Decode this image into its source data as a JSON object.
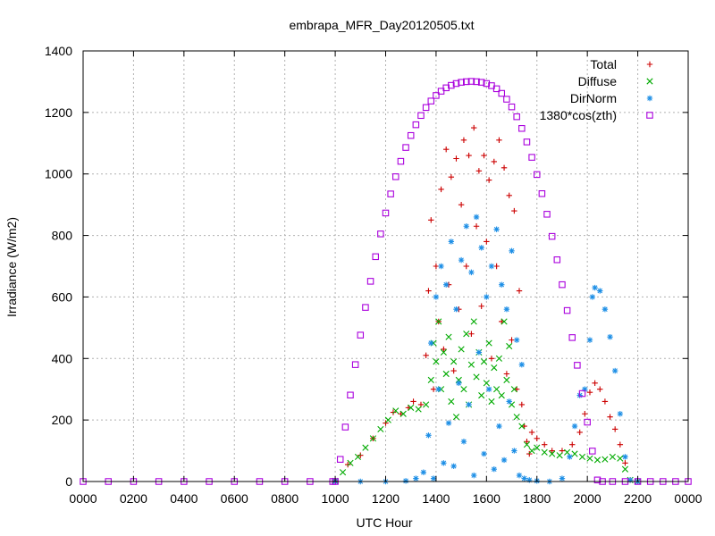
{
  "chart_data": {
    "type": "scatter",
    "title": "embrapa_MFR_Day20120505.txt",
    "xlabel": "UTC Hour",
    "ylabel": "Irradiance (W/m2)",
    "xlim": [
      0,
      24
    ],
    "ylim": [
      0,
      1400
    ],
    "grid": true,
    "legend_position": "top-right",
    "x_ticks": [
      {
        "v": 0,
        "label": "0000"
      },
      {
        "v": 2,
        "label": "0200"
      },
      {
        "v": 4,
        "label": "0400"
      },
      {
        "v": 6,
        "label": "0600"
      },
      {
        "v": 8,
        "label": "0800"
      },
      {
        "v": 10,
        "label": "1000"
      },
      {
        "v": 12,
        "label": "1200"
      },
      {
        "v": 14,
        "label": "1400"
      },
      {
        "v": 16,
        "label": "1600"
      },
      {
        "v": 18,
        "label": "1800"
      },
      {
        "v": 20,
        "label": "2000"
      },
      {
        "v": 22,
        "label": "2200"
      },
      {
        "v": 24,
        "label": "0000"
      }
    ],
    "y_ticks": [
      {
        "v": 0,
        "label": "0"
      },
      {
        "v": 200,
        "label": "200"
      },
      {
        "v": 400,
        "label": "400"
      },
      {
        "v": 600,
        "label": "600"
      },
      {
        "v": 800,
        "label": "800"
      },
      {
        "v": 1000,
        "label": "1000"
      },
      {
        "v": 1200,
        "label": "1200"
      },
      {
        "v": 1400,
        "label": "1400"
      }
    ],
    "series": [
      {
        "name": "Total",
        "color": "#cc0000",
        "marker": "plus",
        "points": [
          [
            10.0,
            2
          ],
          [
            10.5,
            55
          ],
          [
            11.0,
            85
          ],
          [
            11.5,
            140
          ],
          [
            12.0,
            190
          ],
          [
            12.3,
            225
          ],
          [
            12.6,
            220
          ],
          [
            12.9,
            240
          ],
          [
            13.1,
            260
          ],
          [
            13.4,
            250
          ],
          [
            13.6,
            410
          ],
          [
            13.7,
            620
          ],
          [
            13.8,
            850
          ],
          [
            13.9,
            300
          ],
          [
            14.0,
            700
          ],
          [
            14.1,
            520
          ],
          [
            14.2,
            950
          ],
          [
            14.3,
            430
          ],
          [
            14.4,
            1080
          ],
          [
            14.5,
            640
          ],
          [
            14.6,
            990
          ],
          [
            14.7,
            360
          ],
          [
            14.8,
            1050
          ],
          [
            14.9,
            560
          ],
          [
            15.0,
            900
          ],
          [
            15.1,
            1110
          ],
          [
            15.2,
            700
          ],
          [
            15.3,
            1060
          ],
          [
            15.4,
            480
          ],
          [
            15.5,
            1150
          ],
          [
            15.6,
            830
          ],
          [
            15.7,
            1010
          ],
          [
            15.8,
            570
          ],
          [
            15.9,
            1060
          ],
          [
            16.0,
            780
          ],
          [
            16.1,
            980
          ],
          [
            16.2,
            400
          ],
          [
            16.3,
            1040
          ],
          [
            16.4,
            700
          ],
          [
            16.5,
            1110
          ],
          [
            16.6,
            520
          ],
          [
            16.7,
            1020
          ],
          [
            16.8,
            350
          ],
          [
            16.9,
            930
          ],
          [
            17.0,
            460
          ],
          [
            17.1,
            880
          ],
          [
            17.2,
            300
          ],
          [
            17.3,
            620
          ],
          [
            17.4,
            250
          ],
          [
            17.5,
            180
          ],
          [
            17.6,
            130
          ],
          [
            17.7,
            90
          ],
          [
            17.8,
            160
          ],
          [
            18.0,
            140
          ],
          [
            18.3,
            120
          ],
          [
            18.6,
            100
          ],
          [
            19.0,
            100
          ],
          [
            19.4,
            120
          ],
          [
            19.7,
            160
          ],
          [
            19.9,
            220
          ],
          [
            20.1,
            290
          ],
          [
            20.3,
            320
          ],
          [
            20.5,
            300
          ],
          [
            20.7,
            260
          ],
          [
            20.9,
            210
          ],
          [
            21.1,
            170
          ],
          [
            21.3,
            120
          ],
          [
            21.5,
            60
          ],
          [
            21.7,
            5
          ],
          [
            22.0,
            0
          ]
        ]
      },
      {
        "name": "Diffuse",
        "color": "#00aa00",
        "marker": "cross",
        "points": [
          [
            10.0,
            2
          ],
          [
            10.3,
            30
          ],
          [
            10.6,
            60
          ],
          [
            10.9,
            80
          ],
          [
            11.2,
            110
          ],
          [
            11.5,
            140
          ],
          [
            11.8,
            170
          ],
          [
            12.1,
            200
          ],
          [
            12.4,
            230
          ],
          [
            12.7,
            220
          ],
          [
            13.0,
            240
          ],
          [
            13.3,
            235
          ],
          [
            13.6,
            250
          ],
          [
            13.8,
            330
          ],
          [
            13.9,
            450
          ],
          [
            14.0,
            390
          ],
          [
            14.1,
            520
          ],
          [
            14.2,
            300
          ],
          [
            14.3,
            420
          ],
          [
            14.4,
            350
          ],
          [
            14.5,
            470
          ],
          [
            14.6,
            260
          ],
          [
            14.7,
            390
          ],
          [
            14.8,
            210
          ],
          [
            14.9,
            330
          ],
          [
            15.0,
            430
          ],
          [
            15.1,
            300
          ],
          [
            15.2,
            480
          ],
          [
            15.3,
            250
          ],
          [
            15.4,
            380
          ],
          [
            15.5,
            520
          ],
          [
            15.6,
            340
          ],
          [
            15.7,
            420
          ],
          [
            15.8,
            280
          ],
          [
            15.9,
            390
          ],
          [
            16.0,
            320
          ],
          [
            16.1,
            450
          ],
          [
            16.2,
            260
          ],
          [
            16.3,
            370
          ],
          [
            16.4,
            300
          ],
          [
            16.5,
            400
          ],
          [
            16.6,
            280
          ],
          [
            16.7,
            520
          ],
          [
            16.8,
            330
          ],
          [
            16.9,
            440
          ],
          [
            17.0,
            250
          ],
          [
            17.1,
            300
          ],
          [
            17.2,
            210
          ],
          [
            17.4,
            180
          ],
          [
            17.6,
            120
          ],
          [
            17.8,
            100
          ],
          [
            18.0,
            110
          ],
          [
            18.3,
            95
          ],
          [
            18.6,
            90
          ],
          [
            18.9,
            85
          ],
          [
            19.2,
            95
          ],
          [
            19.5,
            90
          ],
          [
            19.8,
            80
          ],
          [
            20.1,
            75
          ],
          [
            20.4,
            70
          ],
          [
            20.7,
            72
          ],
          [
            21.0,
            80
          ],
          [
            21.3,
            75
          ],
          [
            21.5,
            40
          ],
          [
            21.7,
            5
          ],
          [
            22.0,
            0
          ]
        ]
      },
      {
        "name": "DirNorm",
        "color": "#1e8fe6",
        "marker": "star",
        "points": [
          [
            10.0,
            0
          ],
          [
            11.0,
            0
          ],
          [
            12.0,
            0
          ],
          [
            12.8,
            2
          ],
          [
            13.2,
            10
          ],
          [
            13.5,
            30
          ],
          [
            13.7,
            150
          ],
          [
            13.8,
            450
          ],
          [
            13.9,
            10
          ],
          [
            14.0,
            600
          ],
          [
            14.1,
            300
          ],
          [
            14.2,
            700
          ],
          [
            14.3,
            60
          ],
          [
            14.4,
            640
          ],
          [
            14.5,
            190
          ],
          [
            14.6,
            780
          ],
          [
            14.7,
            50
          ],
          [
            14.8,
            560
          ],
          [
            14.9,
            320
          ],
          [
            15.0,
            720
          ],
          [
            15.1,
            130
          ],
          [
            15.2,
            830
          ],
          [
            15.3,
            250
          ],
          [
            15.4,
            680
          ],
          [
            15.5,
            20
          ],
          [
            15.6,
            860
          ],
          [
            15.7,
            420
          ],
          [
            15.8,
            760
          ],
          [
            15.9,
            90
          ],
          [
            16.0,
            600
          ],
          [
            16.1,
            300
          ],
          [
            16.2,
            700
          ],
          [
            16.3,
            40
          ],
          [
            16.4,
            820
          ],
          [
            16.5,
            180
          ],
          [
            16.6,
            640
          ],
          [
            16.7,
            70
          ],
          [
            16.8,
            560
          ],
          [
            16.9,
            260
          ],
          [
            17.0,
            750
          ],
          [
            17.1,
            100
          ],
          [
            17.2,
            460
          ],
          [
            17.3,
            20
          ],
          [
            17.4,
            380
          ],
          [
            17.5,
            10
          ],
          [
            17.7,
            5
          ],
          [
            18.0,
            2
          ],
          [
            18.5,
            0
          ],
          [
            19.0,
            10
          ],
          [
            19.3,
            80
          ],
          [
            19.5,
            180
          ],
          [
            19.7,
            280
          ],
          [
            19.9,
            300
          ],
          [
            20.1,
            460
          ],
          [
            20.2,
            600
          ],
          [
            20.3,
            630
          ],
          [
            20.5,
            620
          ],
          [
            20.7,
            560
          ],
          [
            20.9,
            470
          ],
          [
            21.1,
            360
          ],
          [
            21.3,
            220
          ],
          [
            21.5,
            80
          ],
          [
            21.7,
            5
          ],
          [
            22.0,
            0
          ]
        ]
      },
      {
        "name": "1380*cos(zth)",
        "color": "#aa00dd",
        "marker": "square",
        "points": [
          [
            0,
            0
          ],
          [
            1,
            0
          ],
          [
            2,
            0
          ],
          [
            3,
            0
          ],
          [
            4,
            0
          ],
          [
            5,
            0
          ],
          [
            6,
            0
          ],
          [
            7,
            0
          ],
          [
            8,
            0
          ],
          [
            9,
            0
          ],
          [
            9.9,
            0
          ],
          [
            10.0,
            0
          ],
          [
            10.2,
            72
          ],
          [
            10.4,
            177
          ],
          [
            10.6,
            281
          ],
          [
            10.8,
            380
          ],
          [
            11.0,
            476
          ],
          [
            11.2,
            566
          ],
          [
            11.4,
            651
          ],
          [
            11.6,
            731
          ],
          [
            11.8,
            805
          ],
          [
            12.0,
            873
          ],
          [
            12.2,
            935
          ],
          [
            12.4,
            991
          ],
          [
            12.6,
            1041
          ],
          [
            12.8,
            1086
          ],
          [
            13.0,
            1125
          ],
          [
            13.2,
            1160
          ],
          [
            13.4,
            1190
          ],
          [
            13.6,
            1216
          ],
          [
            13.8,
            1237
          ],
          [
            14.0,
            1255
          ],
          [
            14.2,
            1269
          ],
          [
            14.4,
            1280
          ],
          [
            14.6,
            1288
          ],
          [
            14.8,
            1294
          ],
          [
            15.0,
            1298
          ],
          [
            15.2,
            1300
          ],
          [
            15.4,
            1301
          ],
          [
            15.6,
            1300
          ],
          [
            15.8,
            1298
          ],
          [
            16.0,
            1294
          ],
          [
            16.2,
            1287
          ],
          [
            16.4,
            1277
          ],
          [
            16.6,
            1262
          ],
          [
            16.8,
            1243
          ],
          [
            17.0,
            1218
          ],
          [
            17.2,
            1186
          ],
          [
            17.4,
            1148
          ],
          [
            17.6,
            1104
          ],
          [
            17.8,
            1054
          ],
          [
            18.0,
            998
          ],
          [
            18.2,
            936
          ],
          [
            18.4,
            869
          ],
          [
            18.6,
            797
          ],
          [
            18.8,
            721
          ],
          [
            19.0,
            640
          ],
          [
            19.2,
            556
          ],
          [
            19.4,
            468
          ],
          [
            19.6,
            378
          ],
          [
            19.8,
            286
          ],
          [
            20.0,
            193
          ],
          [
            20.2,
            99
          ],
          [
            20.4,
            5
          ],
          [
            20.6,
            0
          ],
          [
            21,
            0
          ],
          [
            21.5,
            0
          ],
          [
            22,
            0
          ],
          [
            22.5,
            0
          ],
          [
            23,
            0
          ],
          [
            23.5,
            0
          ],
          [
            24,
            0
          ]
        ]
      }
    ]
  }
}
